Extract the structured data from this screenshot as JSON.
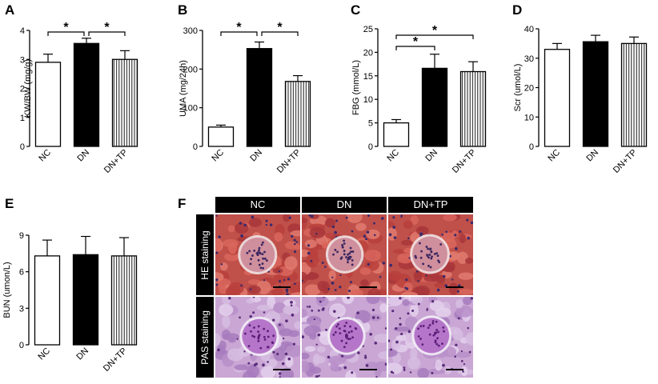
{
  "panel_letters": [
    "A",
    "B",
    "C",
    "D",
    "E",
    "F"
  ],
  "colors": {
    "NC": "#ffffff",
    "DN": "#000000",
    "DN+TP": "vertical-hatch"
  },
  "chart_data": [
    {
      "panel": "A",
      "type": "bar",
      "categories": [
        "NC",
        "DN",
        "DN+TP"
      ],
      "values": [
        2.9,
        3.55,
        3.0
      ],
      "errors": [
        0.28,
        0.18,
        0.3
      ],
      "ylabel": "KW/BW (mg/g)",
      "ylim": [
        0,
        4
      ],
      "yticks": [
        "0",
        "1",
        "2",
        "3",
        "4"
      ],
      "significance": [
        {
          "pair": [
            0,
            1
          ],
          "label": "*"
        },
        {
          "pair": [
            1,
            2
          ],
          "label": "*"
        }
      ]
    },
    {
      "panel": "B",
      "type": "bar",
      "categories": [
        "NC",
        "DN",
        "DN+TP"
      ],
      "values": [
        50,
        253,
        168
      ],
      "errors": [
        5,
        17,
        15
      ],
      "ylabel": "UMA (mg/24h)",
      "ylim": [
        0,
        300
      ],
      "yticks": [
        "0",
        "100",
        "200",
        "300"
      ],
      "significance": [
        {
          "pair": [
            0,
            1
          ],
          "label": "*"
        },
        {
          "pair": [
            1,
            2
          ],
          "label": "*"
        }
      ]
    },
    {
      "panel": "C",
      "type": "bar",
      "categories": [
        "NC",
        "DN",
        "DN+TP"
      ],
      "values": [
        5.0,
        16.6,
        15.9
      ],
      "errors": [
        0.7,
        3.0,
        2.1
      ],
      "ylabel": "FBG (mmol/L)",
      "ylim": [
        0,
        25
      ],
      "yticks": [
        "0",
        "5",
        "10",
        "15",
        "20",
        "25"
      ],
      "significance": [
        {
          "pair": [
            0,
            1
          ],
          "label": "*"
        },
        {
          "pair": [
            0,
            2
          ],
          "label": "*"
        }
      ]
    },
    {
      "panel": "D",
      "type": "bar",
      "categories": [
        "NC",
        "DN",
        "DN+TP"
      ],
      "values": [
        33.0,
        35.6,
        35.0
      ],
      "errors": [
        2.0,
        2.2,
        2.2
      ],
      "ylabel": "Scr (umol/L)",
      "ylim": [
        0,
        40
      ],
      "yticks": [
        "0",
        "10",
        "20",
        "30",
        "40"
      ],
      "significance": []
    },
    {
      "panel": "E",
      "type": "bar",
      "categories": [
        "NC",
        "DN",
        "DN+TP"
      ],
      "values": [
        7.3,
        7.4,
        7.3
      ],
      "errors": [
        1.3,
        1.5,
        1.5
      ],
      "ylabel": "BUN (umon/L)",
      "ylim": [
        0,
        9
      ],
      "yticks": [
        "0",
        "3",
        "6",
        "9"
      ],
      "significance": []
    }
  ],
  "micrographs": {
    "columns": [
      "NC",
      "DN",
      "DN+TP"
    ],
    "rows": [
      "HE staining",
      "PAS staining"
    ]
  }
}
